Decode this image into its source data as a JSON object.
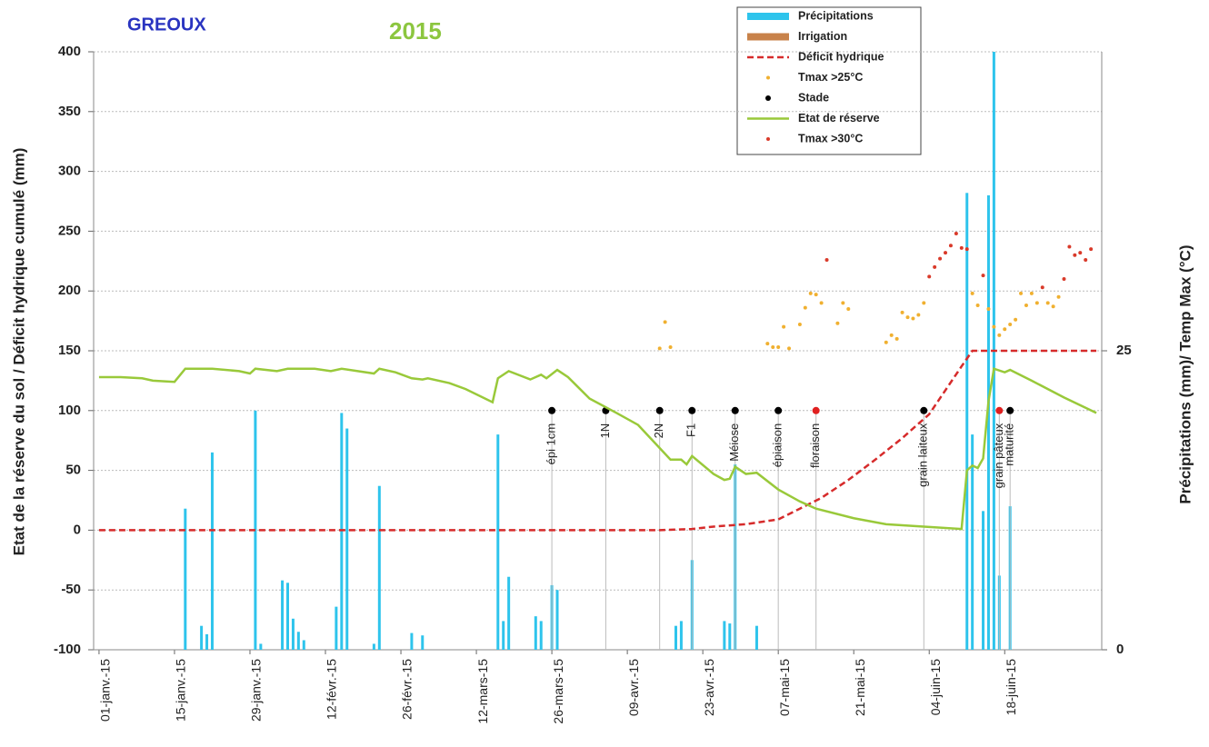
{
  "chart_data": {
    "type": "combo",
    "title": "GREOUX",
    "subtitle": "2015",
    "ylabel": "Etat de la réserve du sol / Déficit hydrique cumulé (mm)",
    "y2label": "Précipitations (mm)/ Temp Max (°C)",
    "xlim": [
      "2014-12-31",
      "2015-07-06"
    ],
    "xticks": [
      {
        "value": "2015-01-01",
        "label": "01-janv.-15"
      },
      {
        "value": "2015-01-15",
        "label": "15-janv.-15"
      },
      {
        "value": "2015-01-29",
        "label": "29-janv.-15"
      },
      {
        "value": "2015-02-12",
        "label": "12-févr.-15"
      },
      {
        "value": "2015-02-26",
        "label": "26-févr.-15"
      },
      {
        "value": "2015-03-12",
        "label": "12-mars-15"
      },
      {
        "value": "2015-03-26",
        "label": "26-mars-15"
      },
      {
        "value": "2015-04-09",
        "label": "09-avr.-15"
      },
      {
        "value": "2015-04-23",
        "label": "23-avr.-15"
      },
      {
        "value": "2015-05-07",
        "label": "07-mai-15"
      },
      {
        "value": "2015-05-21",
        "label": "21-mai-15"
      },
      {
        "value": "2015-06-04",
        "label": "04-juin-15"
      },
      {
        "value": "2015-06-18",
        "label": "18-juin-15"
      }
    ],
    "ylim": [
      -100,
      400
    ],
    "yticks": [
      -100,
      -50,
      0,
      50,
      100,
      150,
      200,
      250,
      300,
      350,
      400
    ],
    "y2lim": [
      0,
      50
    ],
    "y2ticks": [
      0,
      25
    ],
    "grid": true,
    "series": [
      {
        "name": "Précipitations",
        "kind": "bar",
        "axis": "y2",
        "color": "#2ec4ec",
        "x": [
          "2015-01-17",
          "2015-01-20",
          "2015-01-21",
          "2015-01-22",
          "2015-01-30",
          "2015-01-31",
          "2015-02-04",
          "2015-02-05",
          "2015-02-06",
          "2015-02-07",
          "2015-02-08",
          "2015-02-14",
          "2015-02-15",
          "2015-02-16",
          "2015-02-21",
          "2015-02-22",
          "2015-02-28",
          "2015-03-02",
          "2015-03-16",
          "2015-03-17",
          "2015-03-18",
          "2015-03-23",
          "2015-03-24",
          "2015-03-26",
          "2015-03-27",
          "2015-04-18",
          "2015-04-19",
          "2015-04-21",
          "2015-04-27",
          "2015-04-28",
          "2015-04-29",
          "2015-05-03",
          "2015-06-11",
          "2015-06-12",
          "2015-06-14",
          "2015-06-15",
          "2015-06-16",
          "2015-06-17",
          "2015-06-19"
        ],
        "values": [
          11.8,
          2.0,
          1.3,
          16.5,
          20,
          0.5,
          5.8,
          5.6,
          2.6,
          1.5,
          0.8,
          3.6,
          19.8,
          18.5,
          0.5,
          13.7,
          1.4,
          1.2,
          18,
          2.4,
          6.1,
          2.8,
          2.4,
          5.4,
          5.0,
          2.0,
          2.4,
          7.5,
          2.4,
          2.2,
          15.5,
          2.0,
          38.2,
          18,
          11.6,
          38,
          50,
          6.2,
          12
        ]
      },
      {
        "name": "Irrigation",
        "kind": "bar",
        "axis": "y2",
        "color": "#c8824a",
        "x": [],
        "values": []
      },
      {
        "name": "Déficit hydrique",
        "kind": "line",
        "dash": true,
        "color": "#d62b2b",
        "x": [
          "2015-01-01",
          "2015-04-15",
          "2015-04-21",
          "2015-04-25",
          "2015-05-01",
          "2015-05-07",
          "2015-05-11",
          "2015-05-15",
          "2015-05-20",
          "2015-05-25",
          "2015-05-30",
          "2015-06-04",
          "2015-06-07",
          "2015-06-10",
          "2015-06-12",
          "2015-07-05"
        ],
        "values": [
          0,
          0,
          1,
          3,
          5,
          9,
          18,
          27,
          42,
          59,
          77,
          97,
          117,
          137,
          150,
          150
        ]
      },
      {
        "name": "Tmax >25°C",
        "kind": "scatter",
        "axis": "y2",
        "color": "#f0b030",
        "x": [
          "2015-04-15",
          "2015-04-16",
          "2015-04-17",
          "2015-05-05",
          "2015-05-06",
          "2015-05-07",
          "2015-05-08",
          "2015-05-09",
          "2015-05-11",
          "2015-05-12",
          "2015-05-13",
          "2015-05-14",
          "2015-05-15",
          "2015-05-18",
          "2015-05-19",
          "2015-05-20",
          "2015-05-27",
          "2015-05-28",
          "2015-05-29",
          "2015-05-30",
          "2015-05-31",
          "2015-06-01",
          "2015-06-02",
          "2015-06-03",
          "2015-06-12",
          "2015-06-13",
          "2015-06-15",
          "2015-06-16",
          "2015-06-17",
          "2015-06-18",
          "2015-06-19",
          "2015-06-20",
          "2015-06-21",
          "2015-06-22",
          "2015-06-23",
          "2015-06-24",
          "2015-06-26",
          "2015-06-27",
          "2015-06-28"
        ],
        "values": [
          25.2,
          27.4,
          25.3,
          25.6,
          25.3,
          25.3,
          27.0,
          25.2,
          27.2,
          28.6,
          29.8,
          29.7,
          29.0,
          27.3,
          29.0,
          28.5,
          25.7,
          26.3,
          26.0,
          28.2,
          27.8,
          27.7,
          28.0,
          29.0,
          29.8,
          28.8,
          28.5,
          27.0,
          26.3,
          26.8,
          27.2,
          27.6,
          29.8,
          28.8,
          29.8,
          29.0,
          29.0,
          28.7,
          29.5
        ]
      },
      {
        "name": "Stade",
        "kind": "stage",
        "color": "#000000",
        "x": [
          "2015-03-26",
          "2015-04-05",
          "2015-04-15",
          "2015-04-21",
          "2015-04-29",
          "2015-05-07",
          "2015-05-14",
          "2015-06-03",
          "2015-06-17",
          "2015-06-19"
        ],
        "values": [
          100,
          100,
          100,
          100,
          100,
          100,
          100,
          100,
          100,
          100
        ],
        "labels": [
          "épi 1cm",
          "1N",
          "2N",
          "F1",
          "Méiose",
          "épiaison",
          "floraison",
          "grain laiteux",
          "grain pâteux",
          "maturité"
        ],
        "point_colors": [
          "#000000",
          "#000000",
          "#000000",
          "#000000",
          "#000000",
          "#000000",
          "#e02020",
          "#000000",
          "#e02020",
          "#000000"
        ]
      },
      {
        "name": "Etat de réserve",
        "kind": "line",
        "color": "#99c93a",
        "x": [
          "2015-01-01",
          "2015-01-05",
          "2015-01-09",
          "2015-01-11",
          "2015-01-15",
          "2015-01-17",
          "2015-01-22",
          "2015-01-27",
          "2015-01-29",
          "2015-01-30",
          "2015-02-03",
          "2015-02-05",
          "2015-02-10",
          "2015-02-13",
          "2015-02-15",
          "2015-02-18",
          "2015-02-21",
          "2015-02-22",
          "2015-02-25",
          "2015-02-28",
          "2015-03-02",
          "2015-03-03",
          "2015-03-07",
          "2015-03-10",
          "2015-03-15",
          "2015-03-16",
          "2015-03-18",
          "2015-03-22",
          "2015-03-24",
          "2015-03-25",
          "2015-03-27",
          "2015-03-29",
          "2015-04-02",
          "2015-04-07",
          "2015-04-11",
          "2015-04-17",
          "2015-04-19",
          "2015-04-20",
          "2015-04-21",
          "2015-04-25",
          "2015-04-27",
          "2015-04-28",
          "2015-04-29",
          "2015-05-01",
          "2015-05-03",
          "2015-05-07",
          "2015-05-11",
          "2015-05-14",
          "2015-05-21",
          "2015-05-27",
          "2015-06-03",
          "2015-06-10",
          "2015-06-11",
          "2015-06-12",
          "2015-06-13",
          "2015-06-14",
          "2015-06-15",
          "2015-06-16",
          "2015-06-18",
          "2015-06-19",
          "2015-06-23",
          "2015-06-29",
          "2015-07-05"
        ],
        "values": [
          128,
          128,
          127,
          125,
          124,
          135,
          135,
          133,
          131,
          135,
          133,
          135,
          135,
          133,
          135,
          133,
          131,
          135,
          132,
          127,
          126,
          127,
          123,
          118,
          107,
          127,
          133,
          126,
          130,
          127,
          134,
          128,
          110,
          98,
          88,
          59,
          59,
          55,
          62,
          47,
          42,
          43,
          53,
          47,
          48,
          34,
          24,
          18,
          10,
          5,
          3,
          1,
          50,
          54,
          52,
          60,
          108,
          135,
          132,
          134,
          125,
          111,
          98
        ]
      },
      {
        "name": "Tmax >30°C",
        "kind": "scatter",
        "axis": "y2",
        "color": "#d93a2a",
        "x": [
          "2015-05-16",
          "2015-06-04",
          "2015-06-05",
          "2015-06-06",
          "2015-06-07",
          "2015-06-08",
          "2015-06-09",
          "2015-06-10",
          "2015-06-11",
          "2015-06-14",
          "2015-06-25",
          "2015-06-29",
          "2015-06-30",
          "2015-07-01",
          "2015-07-02",
          "2015-07-03",
          "2015-07-04"
        ],
        "values": [
          32.6,
          31.2,
          32.0,
          32.7,
          33.2,
          33.8,
          34.8,
          33.6,
          33.5,
          31.3,
          30.3,
          31.0,
          33.7,
          33.0,
          33.2,
          32.6,
          33.5
        ]
      }
    ]
  }
}
